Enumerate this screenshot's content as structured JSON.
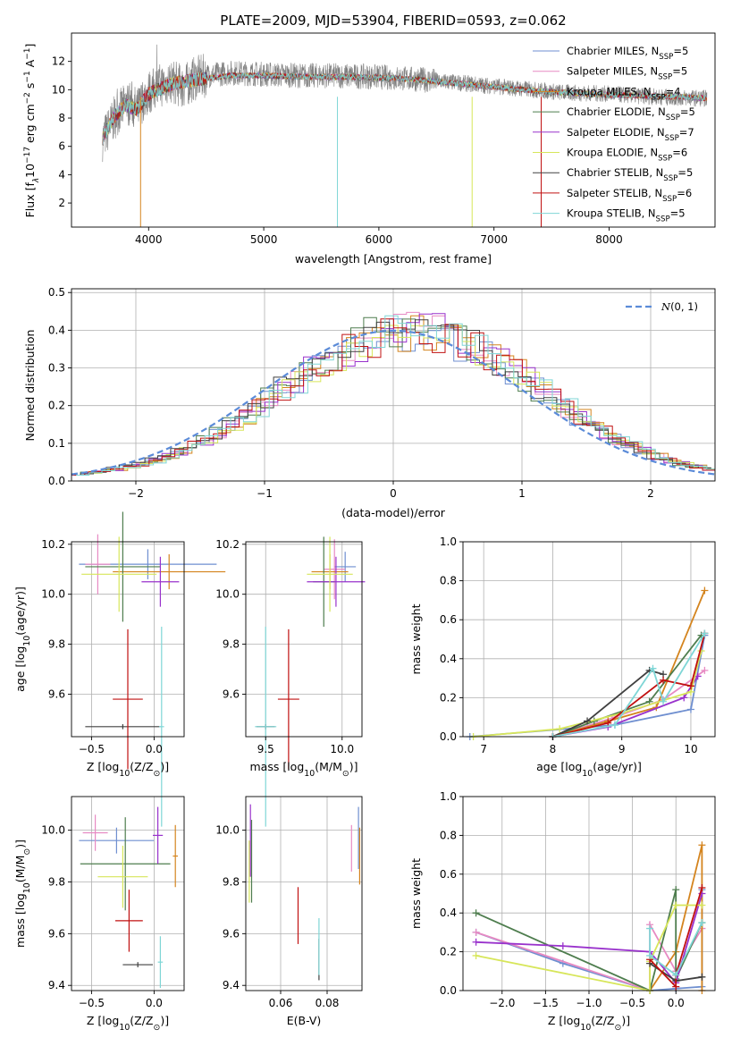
{
  "title": "PLATE=2009, MJD=53904, FIBERID=0593, z=0.062",
  "model_colors": [
    "#6f8fd0",
    "#e78ac3",
    "#d4841e",
    "#4e7d4e",
    "#9932cc",
    "#d7e65a",
    "#404040",
    "#c01010",
    "#7fd6d6"
  ],
  "chart_data": [
    {
      "id": "spectrum",
      "type": "line",
      "xlabel": "wavelength [Angstrom, rest frame]",
      "ylabel": "Flux [f_λ10^-17 erg cm^-2 s^-1 A^-1]",
      "xlim": [
        3330,
        8920
      ],
      "ylim": [
        0.3,
        14.0
      ],
      "xticks": [
        "4000",
        "5000",
        "6000",
        "7000",
        "8000"
      ],
      "yticks": [
        "2",
        "4",
        "6",
        "8",
        "10",
        "12"
      ],
      "grid": false,
      "legend_position": "top-right",
      "data_series": {
        "name": "",
        "color": "#808080",
        "x": [
          3600,
          3650,
          3700,
          3750,
          3800,
          3850,
          3900,
          3950,
          4000,
          4100,
          4200,
          4300,
          4400,
          4500,
          4700,
          5000,
          5300,
          5600,
          6000,
          6400,
          6800,
          7200,
          7600,
          8000,
          8400,
          8800
        ],
        "y": [
          6.5,
          7.2,
          8.0,
          8.5,
          8.9,
          9.1,
          8.5,
          9.3,
          9.8,
          10.3,
          10.6,
          10.2,
          10.8,
          11.0,
          11.2,
          11.1,
          11.0,
          11.0,
          10.9,
          10.7,
          10.4,
          10.1,
          9.8,
          9.7,
          9.5,
          9.4
        ]
      },
      "model_series_shape": {
        "x": [
          3600,
          3700,
          3800,
          3900,
          4000,
          4200,
          4400,
          4700,
          5000,
          5400,
          5800,
          6200,
          6600,
          7000,
          7400,
          7800,
          8200,
          8600,
          8850
        ],
        "y": [
          6.6,
          8.1,
          8.9,
          8.6,
          9.7,
          10.4,
          10.7,
          11.0,
          11.0,
          10.9,
          10.9,
          10.8,
          10.5,
          10.2,
          9.9,
          9.7,
          9.6,
          9.5,
          9.4
        ]
      },
      "series_names": [
        "Chabrier MILES, N_SSP=5",
        "Salpeter MILES, N_SSP=5",
        "Kroupa MILES, N_SSP=4",
        "Chabrier ELODIE, N_SSP=5",
        "Salpeter ELODIE, N_SSP=7",
        "Kroupa ELODIE, N_SSP=6",
        "Chabrier STELIB, N_SSP=5",
        "Salpeter STELIB, N_SSP=6",
        "Kroupa STELIB, N_SSP=5"
      ],
      "legend_labels": [
        {
          "pre": "Chabrier MILES, N",
          "sub": "SSP",
          "post": "=5"
        },
        {
          "pre": "Salpeter MILES, N",
          "sub": "SSP",
          "post": "=5"
        },
        {
          "pre": "Kroupa MILES, N",
          "sub": "SSP",
          "post": "=4"
        },
        {
          "pre": "Chabrier ELODIE, N",
          "sub": "SSP",
          "post": "=5"
        },
        {
          "pre": "Salpeter ELODIE, N",
          "sub": "SSP",
          "post": "=7"
        },
        {
          "pre": "Kroupa ELODIE, N",
          "sub": "SSP",
          "post": "=6"
        },
        {
          "pre": "Chabrier STELIB, N",
          "sub": "SSP",
          "post": "=5"
        },
        {
          "pre": "Salpeter STELIB, N",
          "sub": "SSP",
          "post": "=6"
        },
        {
          "pre": "Kroupa STELIB, N",
          "sub": "SSP",
          "post": "=5"
        }
      ]
    },
    {
      "id": "residuals",
      "type": "line",
      "xlabel": "(data-model)/error",
      "ylabel": "Normed distribution",
      "xlim": [
        -2.5,
        2.5
      ],
      "ylim": [
        0,
        0.51
      ],
      "xticks": [
        "−2",
        "−1",
        "0",
        "1",
        "2"
      ],
      "yticks": [
        "0.0",
        "0.1",
        "0.2",
        "0.3",
        "0.4",
        "0.5"
      ],
      "grid": true,
      "legend_position": "top-right",
      "reference_series": {
        "name": "N(0,1)",
        "color": "#5b8bd8",
        "style": "dashed"
      },
      "bin_width": 0.1,
      "histogram_base": [
        0.018,
        0.022,
        0.026,
        0.032,
        0.038,
        0.045,
        0.055,
        0.066,
        0.079,
        0.094,
        0.11,
        0.129,
        0.149,
        0.171,
        0.194,
        0.218,
        0.242,
        0.266,
        0.29,
        0.312,
        0.333,
        0.352,
        0.368,
        0.381,
        0.391,
        0.397,
        0.399,
        0.397,
        0.391,
        0.381,
        0.368,
        0.352,
        0.333,
        0.312,
        0.29,
        0.266,
        0.242,
        0.218,
        0.194,
        0.171,
        0.149,
        0.129,
        0.11,
        0.094,
        0.079,
        0.066,
        0.055,
        0.045,
        0.038,
        0.032
      ]
    },
    {
      "id": "z-age",
      "type": "scatter",
      "xlabel_parts": {
        "pre": "Z [log",
        "sub": "10",
        "mid": "(Z/Z",
        "sub2": "⊙",
        "post": ")]"
      },
      "ylabel_parts": {
        "pre": "age  [log",
        "sub": "10",
        "post": "(age/yr)]"
      },
      "xlim": [
        -0.66,
        0.24
      ],
      "ylim": [
        9.43,
        10.21
      ],
      "xticks": [
        {
          "v": -0.5,
          "t": "−0.5"
        },
        {
          "v": 0.0,
          "t": "0.0"
        }
      ],
      "yticks": [
        {
          "v": 9.6,
          "t": "9.6"
        },
        {
          "v": 9.8,
          "t": "9.8"
        },
        {
          "v": 10.0,
          "t": "10.0"
        },
        {
          "v": 10.2,
          "t": "10.2"
        }
      ],
      "points": [
        {
          "x": -0.05,
          "y": 10.12,
          "xerr": 0.55,
          "yerr": 0.06
        },
        {
          "x": -0.45,
          "y": 10.12,
          "xerr": 0.1,
          "yerr": 0.12
        },
        {
          "x": 0.12,
          "y": 10.09,
          "xerr": 0.45,
          "yerr": 0.07
        },
        {
          "x": -0.25,
          "y": 10.11,
          "xerr": 0.3,
          "yerr": 0.22
        },
        {
          "x": 0.05,
          "y": 10.05,
          "xerr": 0.15,
          "yerr": 0.1
        },
        {
          "x": -0.28,
          "y": 10.08,
          "xerr": 0.3,
          "yerr": 0.15
        },
        {
          "x": -0.25,
          "y": 9.47,
          "xerr": 0.3,
          "yerr": 0.01
        },
        {
          "x": -0.21,
          "y": 9.58,
          "xerr": 0.12,
          "yerr": 0.28
        },
        {
          "x": 0.06,
          "y": 9.47,
          "xerr": 0.02,
          "yerr": 0.4
        }
      ]
    },
    {
      "id": "mass-age",
      "type": "scatter",
      "xlabel_parts": {
        "pre": "mass [log",
        "sub": "10",
        "mid": "(M/M",
        "sub2": "⊙",
        "post": ")]"
      },
      "xlim": [
        9.37,
        10.13
      ],
      "ylim": [
        9.43,
        10.21
      ],
      "xticks": [
        {
          "v": 9.5,
          "t": "9.5"
        },
        {
          "v": 10.0,
          "t": "10.0"
        }
      ],
      "yticks": [
        {
          "v": 9.6,
          "t": "9.6"
        },
        {
          "v": 9.8,
          "t": "9.8"
        },
        {
          "v": 10.0,
          "t": "10.0"
        },
        {
          "v": 10.2,
          "t": "10.2"
        }
      ],
      "points": [
        {
          "x": 10.02,
          "y": 10.11,
          "xerr": 0.07,
          "yerr": 0.06
        },
        {
          "x": 9.95,
          "y": 10.1,
          "xerr": 0.07,
          "yerr": 0.12
        },
        {
          "x": 9.92,
          "y": 10.09,
          "xerr": 0.12,
          "yerr": 0.07
        },
        {
          "x": 9.88,
          "y": 10.05,
          "xerr": 0.07,
          "yerr": 0.18
        },
        {
          "x": 9.96,
          "y": 10.05,
          "xerr": 0.19,
          "yerr": 0.1
        },
        {
          "x": 9.92,
          "y": 10.08,
          "xerr": 0.15,
          "yerr": 0.15
        },
        {
          "x": 9.5,
          "y": 9.47,
          "xerr": 0.06,
          "yerr": 0.01
        },
        {
          "x": 9.65,
          "y": 9.58,
          "xerr": 0.07,
          "yerr": 0.28
        },
        {
          "x": 9.5,
          "y": 9.47,
          "xerr": 0.07,
          "yerr": 0.4
        }
      ]
    },
    {
      "id": "age-weight",
      "type": "line",
      "xlabel_parts": {
        "pre": "age  [log",
        "sub": "10",
        "post": "(age/yr)]"
      },
      "ylabel": "mass weight",
      "xlim": [
        6.7,
        10.35
      ],
      "ylim": [
        0,
        1.0
      ],
      "xticks": [
        {
          "v": 7,
          "t": "7"
        },
        {
          "v": 8,
          "t": "8"
        },
        {
          "v": 9,
          "t": "9"
        },
        {
          "v": 10,
          "t": "10"
        }
      ],
      "yticks": [
        {
          "v": 0,
          "t": "0.0"
        },
        {
          "v": 0.2,
          "t": "0.2"
        },
        {
          "v": 0.4,
          "t": "0.4"
        },
        {
          "v": 0.6,
          "t": "0.6"
        },
        {
          "v": 0.8,
          "t": "0.8"
        },
        {
          "v": 1.0,
          "t": "1.0"
        }
      ],
      "series": [
        {
          "x": [
            6.8,
            8.9,
            10.0,
            10.2
          ],
          "y": [
            0.0,
            0.06,
            0.14,
            0.52
          ]
        },
        {
          "x": [
            8.0,
            8.9,
            9.6,
            10.2
          ],
          "y": [
            0.0,
            0.1,
            0.19,
            0.34
          ]
        },
        {
          "x": [
            8.0,
            8.8,
            9.5,
            10.2
          ],
          "y": [
            0.0,
            0.08,
            0.15,
            0.75
          ]
        },
        {
          "x": [
            8.0,
            8.6,
            9.4,
            10.15
          ],
          "y": [
            0.0,
            0.08,
            0.18,
            0.52
          ]
        },
        {
          "x": [
            8.0,
            8.8,
            9.9,
            10.1
          ],
          "y": [
            0.0,
            0.05,
            0.2,
            0.31
          ]
        },
        {
          "x": [
            6.85,
            8.1,
            9.0,
            10.0,
            10.15
          ],
          "y": [
            0.0,
            0.04,
            0.12,
            0.23,
            0.44
          ]
        },
        {
          "x": [
            8.0,
            8.5,
            9.4,
            9.6
          ],
          "y": [
            0.0,
            0.08,
            0.34,
            0.32
          ]
        },
        {
          "x": [
            8.0,
            8.8,
            9.6,
            10.0,
            10.2
          ],
          "y": [
            0.0,
            0.07,
            0.29,
            0.26,
            0.53
          ]
        },
        {
          "x": [
            8.0,
            8.9,
            9.45,
            9.6,
            10.2
          ],
          "y": [
            0.0,
            0.06,
            0.35,
            0.18,
            0.53
          ]
        }
      ]
    },
    {
      "id": "z-mass",
      "type": "scatter",
      "xlabel_parts": {
        "pre": "Z [log",
        "sub": "10",
        "mid": "(Z/Z",
        "sub2": "⊙",
        "post": ")]"
      },
      "ylabel_parts": {
        "pre": "mass [log",
        "sub": "10",
        "mid": "(M/M",
        "sub2": "⊙",
        "post": ")]"
      },
      "xlim": [
        -0.66,
        0.24
      ],
      "ylim": [
        9.38,
        10.13
      ],
      "xticks": [
        {
          "v": -0.5,
          "t": "−0.5"
        },
        {
          "v": 0.0,
          "t": "0.0"
        }
      ],
      "yticks": [
        {
          "v": 9.4,
          "t": "9.4"
        },
        {
          "v": 9.6,
          "t": "9.6"
        },
        {
          "v": 9.8,
          "t": "9.8"
        },
        {
          "v": 10.0,
          "t": "10.0"
        }
      ],
      "points": [
        {
          "x": -0.3,
          "y": 9.96,
          "xerr": 0.3,
          "yerr": 0.05
        },
        {
          "x": -0.47,
          "y": 9.99,
          "xerr": 0.1,
          "yerr": 0.07
        },
        {
          "x": 0.17,
          "y": 9.9,
          "xerr": 0.02,
          "yerr": 0.12
        },
        {
          "x": -0.23,
          "y": 9.87,
          "xerr": 0.36,
          "yerr": 0.18
        },
        {
          "x": 0.03,
          "y": 9.98,
          "xerr": 0.04,
          "yerr": 0.11
        },
        {
          "x": -0.25,
          "y": 9.82,
          "xerr": 0.2,
          "yerr": 0.12
        },
        {
          "x": -0.13,
          "y": 9.48,
          "xerr": 0.12,
          "yerr": 0.01
        },
        {
          "x": -0.2,
          "y": 9.65,
          "xerr": 0.11,
          "yerr": 0.12
        },
        {
          "x": 0.05,
          "y": 9.49,
          "xerr": 0.02,
          "yerr": 0.1
        }
      ]
    },
    {
      "id": "ebv-mass",
      "type": "scatter",
      "xlabel": "E(B-V)",
      "xlim": [
        0.045,
        0.095
      ],
      "ylim": [
        9.38,
        10.13
      ],
      "xticks": [
        {
          "v": 0.06,
          "t": "0.06"
        },
        {
          "v": 0.08,
          "t": "0.08"
        }
      ],
      "yticks": [
        {
          "v": 9.4,
          "t": "9.4"
        },
        {
          "v": 9.6,
          "t": "9.6"
        },
        {
          "v": 9.8,
          "t": "9.8"
        },
        {
          "v": 10.0,
          "t": "10.0"
        }
      ],
      "points": [
        {
          "x": 0.0935,
          "y": 9.97,
          "xerr": 0,
          "yerr": 0.12
        },
        {
          "x": 0.0905,
          "y": 9.93,
          "xerr": 0,
          "yerr": 0.09
        },
        {
          "x": 0.094,
          "y": 9.9,
          "xerr": 0,
          "yerr": 0.11
        },
        {
          "x": 0.0475,
          "y": 9.88,
          "xerr": 0,
          "yerr": 0.16
        },
        {
          "x": 0.047,
          "y": 9.96,
          "xerr": 0,
          "yerr": 0.14
        },
        {
          "x": 0.0465,
          "y": 9.84,
          "xerr": 0,
          "yerr": 0.12
        },
        {
          "x": 0.0765,
          "y": 9.5,
          "xerr": 0,
          "yerr": 0.08
        },
        {
          "x": 0.0675,
          "y": 9.67,
          "xerr": 0,
          "yerr": 0.11
        },
        {
          "x": 0.0765,
          "y": 9.55,
          "xerr": 0,
          "yerr": 0.11
        }
      ]
    },
    {
      "id": "z-weight",
      "type": "line",
      "xlabel_parts": {
        "pre": "Z [log",
        "sub": "10",
        "mid": "(Z/Z",
        "sub2": "⊙",
        "post": ")]"
      },
      "ylabel": "mass weight",
      "xlim": [
        -2.45,
        0.45
      ],
      "ylim": [
        0,
        1.0
      ],
      "xticks": [
        {
          "v": -2.0,
          "t": "−2.0"
        },
        {
          "v": -1.5,
          "t": "−1.5"
        },
        {
          "v": -1.0,
          "t": "−1.0"
        },
        {
          "v": -0.5,
          "t": "−0.5"
        },
        {
          "v": 0.0,
          "t": "0.0"
        }
      ],
      "yticks": [
        {
          "v": 0,
          "t": "0.0"
        },
        {
          "v": 0.2,
          "t": "0.2"
        },
        {
          "v": 0.4,
          "t": "0.4"
        },
        {
          "v": 0.6,
          "t": "0.6"
        },
        {
          "v": 0.8,
          "t": "0.8"
        },
        {
          "v": 1.0,
          "t": "1.0"
        }
      ],
      "series": [
        {
          "x": [
            -2.3,
            -1.3,
            -0.3,
            0.0,
            0.3,
            0.3
          ],
          "y": [
            0.3,
            0.14,
            0.0,
            0.01,
            0.02,
            0.52
          ]
        },
        {
          "x": [
            -2.3,
            -0.3,
            -0.3,
            0.0,
            0.3
          ],
          "y": [
            0.3,
            0.0,
            0.34,
            0.1,
            0.32
          ]
        },
        {
          "x": [
            -0.3,
            0.0,
            0.3,
            0.3
          ],
          "y": [
            0.0,
            0.2,
            0.75,
            0.0
          ]
        },
        {
          "x": [
            -2.3,
            -0.3,
            0.0,
            0.0,
            0.3
          ],
          "y": [
            0.4,
            0.0,
            0.52,
            0.06,
            0.35
          ]
        },
        {
          "x": [
            -2.3,
            -1.3,
            -0.3,
            0.0,
            0.3
          ],
          "y": [
            0.25,
            0.23,
            0.2,
            0.04,
            0.5
          ]
        },
        {
          "x": [
            -2.3,
            -0.3,
            -0.3,
            0.0,
            0.3
          ],
          "y": [
            0.18,
            0.0,
            0.15,
            0.44,
            0.44
          ]
        },
        {
          "x": [
            -0.3,
            0.0,
            0.3
          ],
          "y": [
            0.14,
            0.05,
            0.07
          ]
        },
        {
          "x": [
            -0.3,
            0.0,
            0.0,
            0.3
          ],
          "y": [
            0.16,
            0.02,
            0.08,
            0.53
          ]
        },
        {
          "x": [
            -0.3,
            -0.3,
            0.0,
            0.3
          ],
          "y": [
            0.32,
            0.18,
            0.08,
            0.35
          ]
        }
      ]
    }
  ]
}
